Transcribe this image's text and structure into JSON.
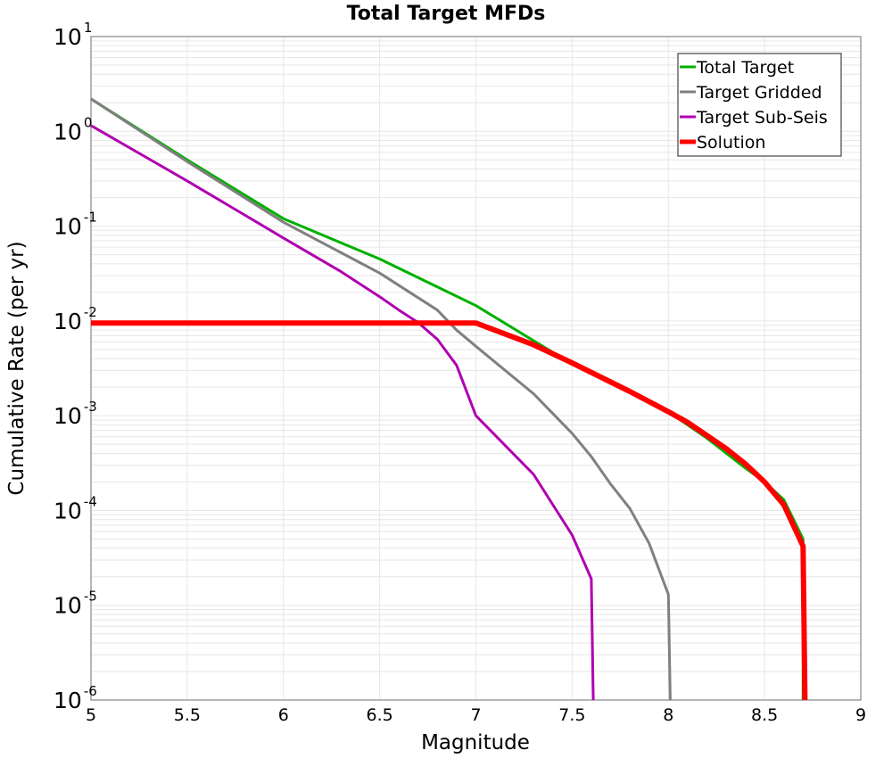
{
  "chart_data": {
    "type": "line",
    "title": "Total Target MFDs",
    "xlabel": "Magnitude",
    "ylabel": "Cumulative Rate (per yr)",
    "xlim": [
      5,
      9
    ],
    "ylim": [
      1e-06,
      10
    ],
    "yscale": "log",
    "grid": true,
    "legend_position": "upper right",
    "x_ticks": [
      "5",
      "5.5",
      "6",
      "6.5",
      "7",
      "7.5",
      "8",
      "8.5",
      "9"
    ],
    "y_ticks": [
      {
        "base": "10",
        "exp": "1"
      },
      {
        "base": "10",
        "exp": "0"
      },
      {
        "base": "10",
        "exp": "-1"
      },
      {
        "base": "10",
        "exp": "-2"
      },
      {
        "base": "10",
        "exp": "-3"
      },
      {
        "base": "10",
        "exp": "-4"
      },
      {
        "base": "10",
        "exp": "-5"
      },
      {
        "base": "10",
        "exp": "-6"
      }
    ],
    "series": [
      {
        "name": "Total Target",
        "color": "#00b000",
        "width": 3,
        "x": [
          5.0,
          5.5,
          6.0,
          6.5,
          7.0,
          7.5,
          7.8,
          8.0,
          8.2,
          8.4,
          8.5,
          8.6,
          8.7,
          8.7
        ],
        "y": [
          2.2,
          0.5,
          0.12,
          0.045,
          0.0145,
          0.0035,
          0.0018,
          0.0011,
          0.00058,
          0.00028,
          0.0002,
          0.00013,
          5e-05,
          1e-06
        ]
      },
      {
        "name": "Target Gridded",
        "color": "#808080",
        "width": 3,
        "x": [
          5.0,
          5.5,
          6.0,
          6.5,
          6.8,
          6.9,
          7.0,
          7.3,
          7.5,
          7.6,
          7.7,
          7.8,
          7.9,
          8.0,
          8.01
        ],
        "y": [
          2.2,
          0.48,
          0.11,
          0.032,
          0.013,
          0.008,
          0.0054,
          0.0017,
          0.00065,
          0.00037,
          0.00019,
          0.000105,
          4.5e-05,
          1.3e-05,
          1e-06
        ]
      },
      {
        "name": "Target Sub-Seis",
        "color": "#b000b0",
        "width": 3,
        "x": [
          5.0,
          5.5,
          6.0,
          6.3,
          6.5,
          6.6,
          6.7,
          6.8,
          6.9,
          7.0,
          7.3,
          7.5,
          7.6,
          7.61
        ],
        "y": [
          1.15,
          0.3,
          0.075,
          0.033,
          0.018,
          0.013,
          0.0096,
          0.0064,
          0.0034,
          0.001,
          0.00024,
          5.5e-05,
          1.9e-05,
          1e-06
        ]
      },
      {
        "name": "Solution",
        "color": "#ff0000",
        "width": 6,
        "x": [
          5.0,
          5.5,
          6.0,
          6.5,
          7.0,
          7.3,
          7.5,
          7.8,
          8.0,
          8.1,
          8.3,
          8.4,
          8.5,
          8.6,
          8.7,
          8.71
        ],
        "y": [
          0.0095,
          0.0095,
          0.0095,
          0.0095,
          0.0095,
          0.0056,
          0.0036,
          0.0018,
          0.0011,
          0.00085,
          0.00045,
          0.00031,
          0.0002,
          0.000115,
          4.2e-05,
          1e-06
        ]
      }
    ]
  }
}
